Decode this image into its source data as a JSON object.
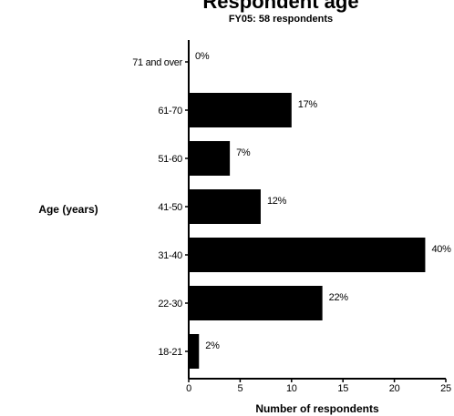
{
  "chart_data": {
    "type": "bar",
    "orientation": "horizontal",
    "title": "Respondent age",
    "subtitle": "FY05: 58 respondents",
    "xlabel": "Number of respondents",
    "ylabel": "Age (years)",
    "xlim": [
      0,
      25
    ],
    "xticks": [
      0,
      5,
      10,
      15,
      20,
      25
    ],
    "grid": false,
    "categories": [
      "18-21",
      "22-30",
      "31-40",
      "41-50",
      "51-60",
      "61-70",
      "71 and over"
    ],
    "values": [
      1,
      13,
      23,
      7,
      4,
      10,
      0
    ],
    "data_labels": [
      "2%",
      "22%",
      "40%",
      "12%",
      "7%",
      "17%",
      "0%"
    ],
    "bar_color": "#000000"
  }
}
